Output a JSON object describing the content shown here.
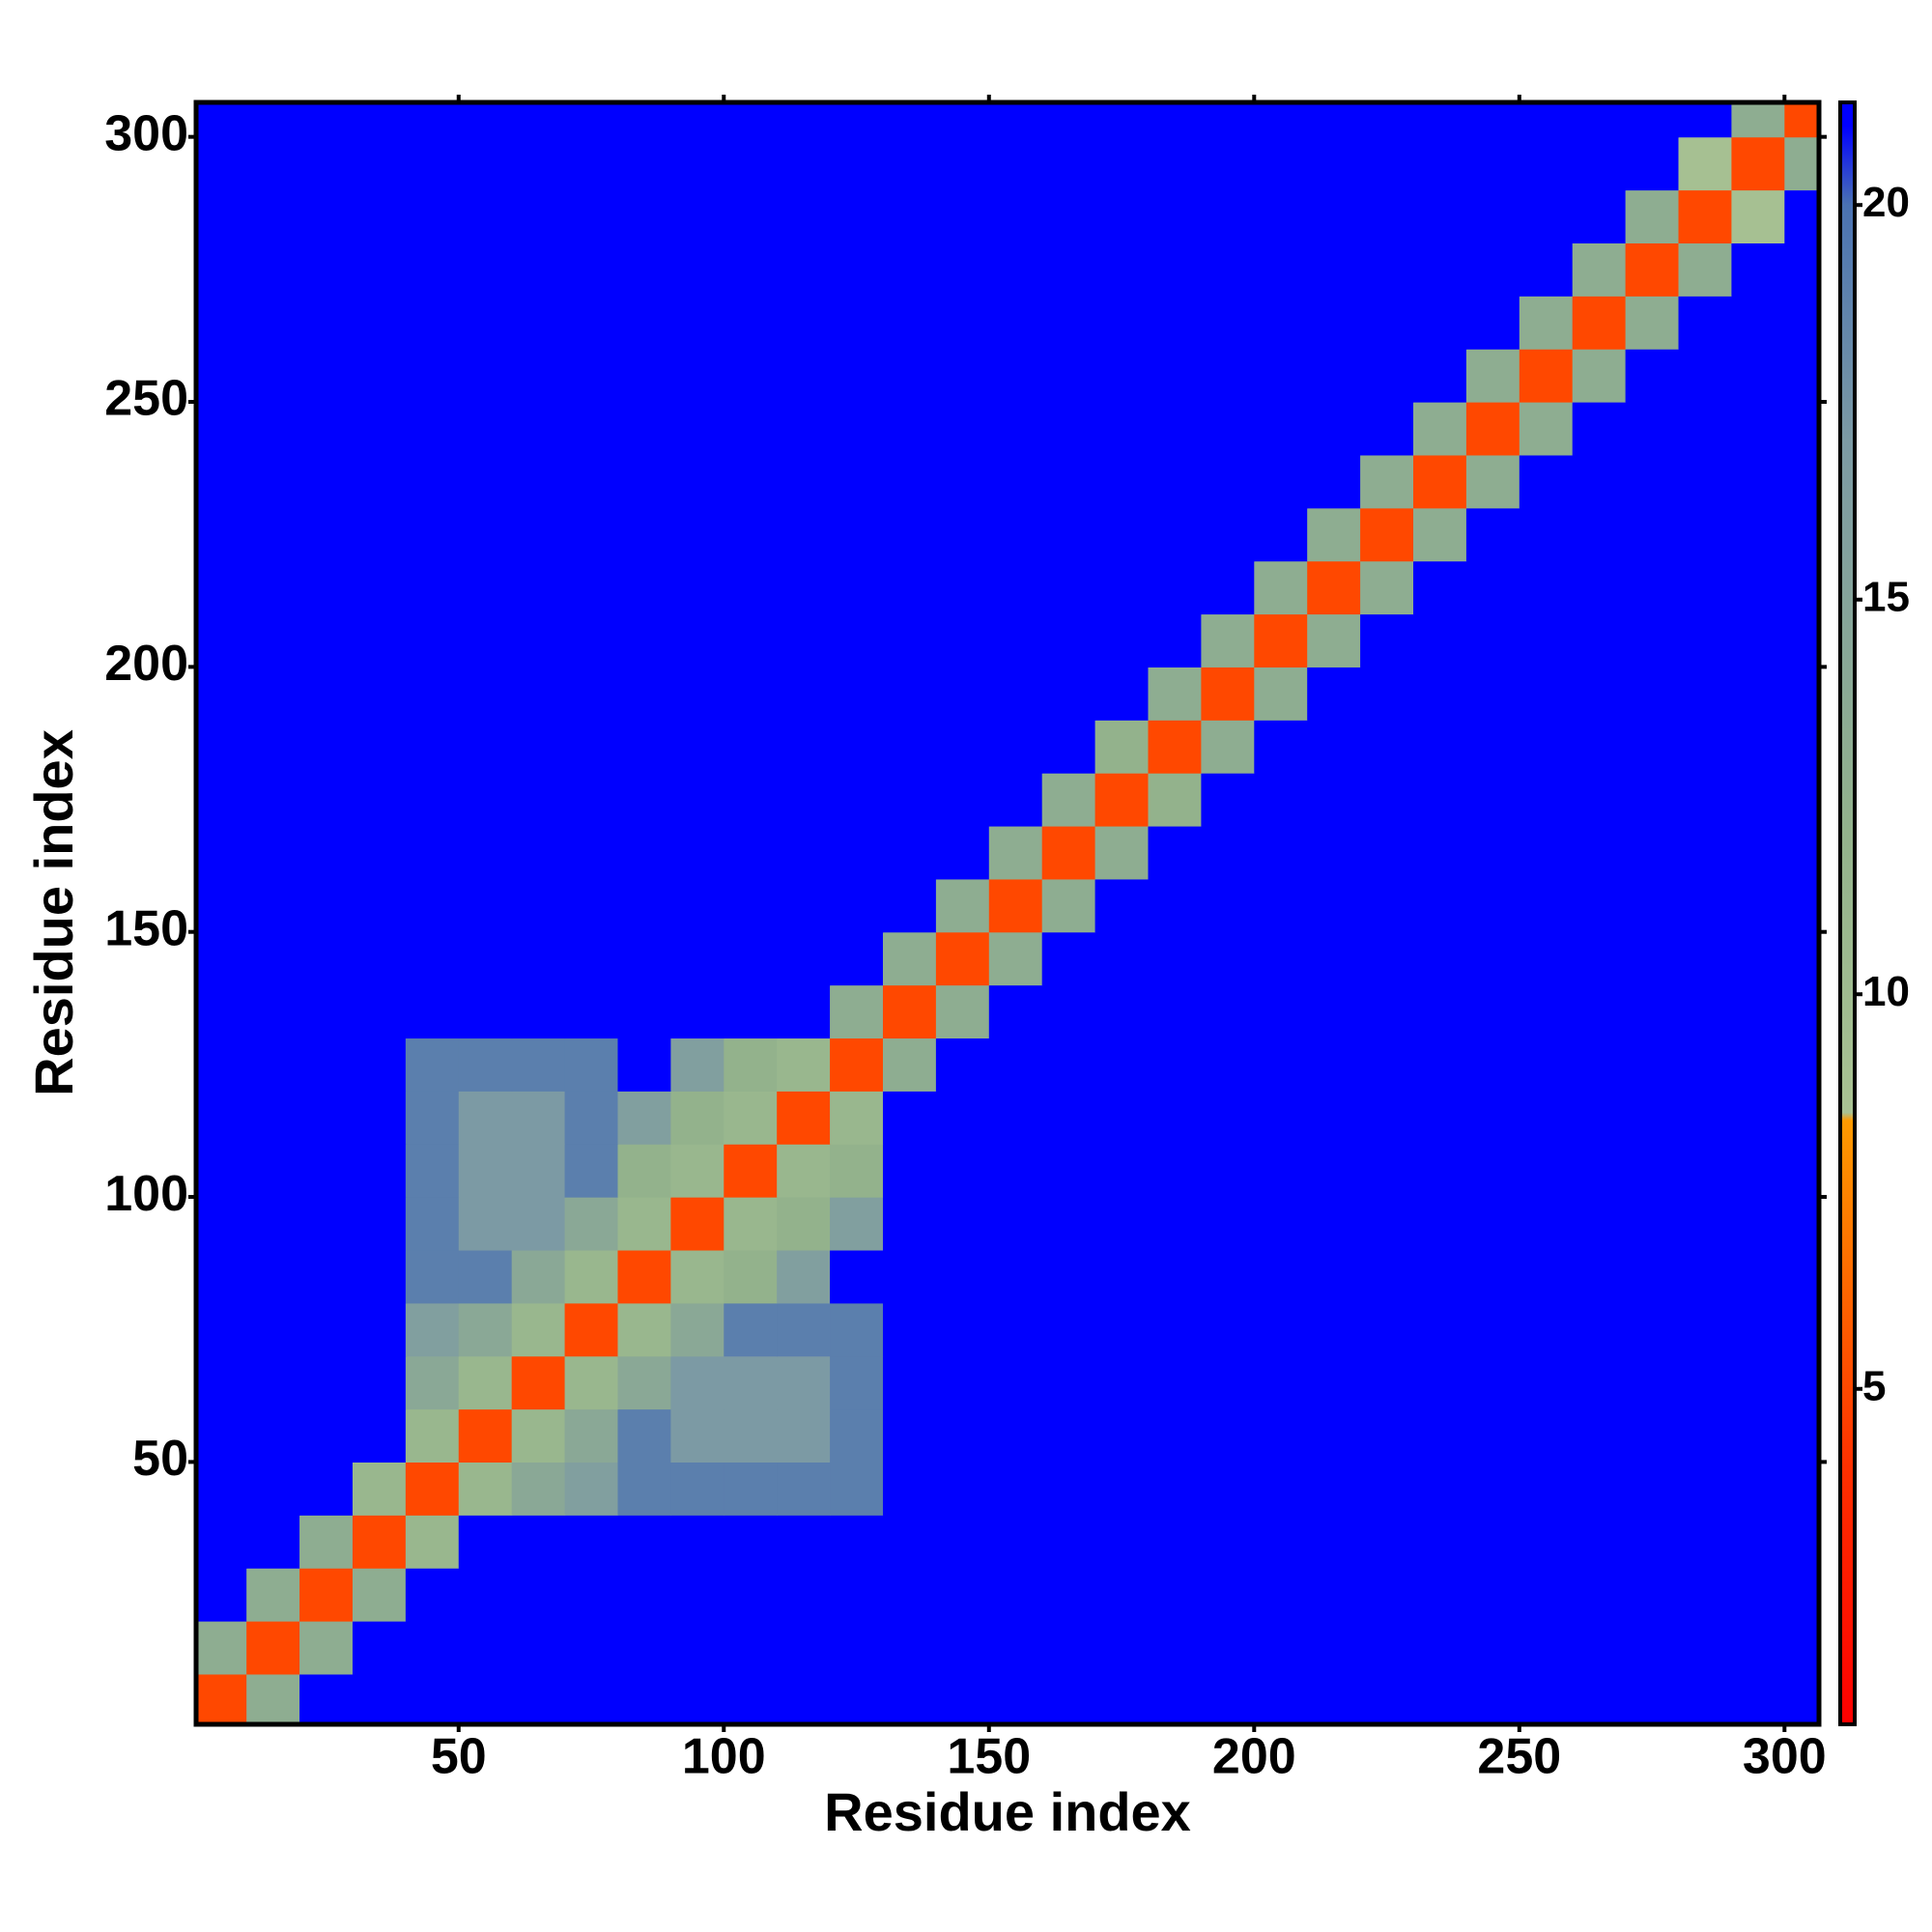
{
  "chart_data": {
    "type": "heatmap",
    "xlabel": "Residue index",
    "ylabel": "Residue index",
    "xbins": [
      0,
      10,
      20,
      30,
      40,
      50,
      60,
      70,
      80,
      90,
      100,
      110,
      120,
      130,
      140,
      150,
      160,
      170,
      180,
      190,
      200,
      210,
      220,
      230,
      240,
      250,
      260,
      270,
      280,
      290,
      300,
      310
    ],
    "ybins": [
      0,
      10,
      20,
      30,
      40,
      50,
      60,
      70,
      80,
      90,
      100,
      110,
      120,
      130,
      140,
      150,
      160,
      170,
      180,
      190,
      200,
      210,
      220,
      230,
      240,
      250,
      260,
      270,
      280,
      290,
      300,
      310
    ],
    "z": [
      [
        5,
        13,
        21,
        21,
        21,
        21,
        21,
        21,
        21,
        21,
        21,
        21,
        21,
        21,
        21,
        21,
        21,
        21,
        21,
        21,
        21,
        21,
        21,
        21,
        21,
        21,
        21,
        21,
        21,
        21,
        21
      ],
      [
        13,
        5,
        13,
        21,
        21,
        21,
        21,
        21,
        21,
        21,
        21,
        21,
        21,
        21,
        21,
        21,
        21,
        21,
        21,
        21,
        21,
        21,
        21,
        21,
        21,
        21,
        21,
        21,
        21,
        21,
        21
      ],
      [
        21,
        13,
        5,
        13,
        21,
        21,
        21,
        21,
        21,
        21,
        21,
        21,
        21,
        21,
        21,
        21,
        21,
        21,
        21,
        21,
        21,
        21,
        21,
        21,
        21,
        21,
        21,
        21,
        21,
        21,
        21
      ],
      [
        21,
        21,
        13,
        5,
        11,
        21,
        21,
        21,
        21,
        21,
        21,
        21,
        21,
        21,
        21,
        21,
        21,
        21,
        21,
        21,
        21,
        21,
        21,
        21,
        21,
        21,
        21,
        21,
        21,
        21,
        21
      ],
      [
        21,
        21,
        21,
        11,
        5,
        11,
        14,
        16,
        19,
        19,
        19,
        19,
        19,
        21,
        21,
        21,
        21,
        21,
        21,
        21,
        21,
        21,
        21,
        21,
        21,
        21,
        21,
        21,
        21,
        21,
        21
      ],
      [
        21,
        21,
        21,
        21,
        11,
        5,
        11,
        14,
        19,
        17,
        17,
        17,
        19,
        21,
        21,
        21,
        21,
        21,
        21,
        21,
        21,
        21,
        21,
        21,
        21,
        21,
        21,
        21,
        21,
        21,
        21
      ],
      [
        21,
        21,
        21,
        21,
        14,
        11,
        5,
        11,
        14,
        17,
        17,
        17,
        19,
        21,
        21,
        21,
        21,
        21,
        21,
        21,
        21,
        21,
        21,
        21,
        21,
        21,
        21,
        21,
        21,
        21,
        21
      ],
      [
        21,
        21,
        21,
        21,
        16,
        14,
        11,
        5,
        11,
        14,
        19,
        19,
        19,
        21,
        21,
        21,
        21,
        21,
        21,
        21,
        21,
        21,
        21,
        21,
        21,
        21,
        21,
        21,
        21,
        21,
        21
      ],
      [
        21,
        21,
        21,
        21,
        19,
        19,
        14,
        11,
        5,
        11,
        12,
        16,
        21,
        21,
        21,
        21,
        21,
        21,
        21,
        21,
        21,
        21,
        21,
        21,
        21,
        21,
        21,
        21,
        21,
        21,
        21
      ],
      [
        21,
        21,
        21,
        21,
        19,
        17,
        17,
        14,
        11,
        5,
        11,
        12,
        16,
        21,
        21,
        21,
        21,
        21,
        21,
        21,
        21,
        21,
        21,
        21,
        21,
        21,
        21,
        21,
        21,
        21,
        21
      ],
      [
        21,
        21,
        21,
        21,
        19,
        17,
        17,
        19,
        12,
        11,
        5,
        11,
        12,
        21,
        21,
        21,
        21,
        21,
        21,
        21,
        21,
        21,
        21,
        21,
        21,
        21,
        21,
        21,
        21,
        21,
        21
      ],
      [
        21,
        21,
        21,
        21,
        19,
        17,
        17,
        19,
        16,
        12,
        11,
        5,
        11,
        21,
        21,
        21,
        21,
        21,
        21,
        21,
        21,
        21,
        21,
        21,
        21,
        21,
        21,
        21,
        21,
        21,
        21
      ],
      [
        21,
        21,
        21,
        21,
        19,
        19,
        19,
        19,
        21,
        16,
        12,
        11,
        5,
        13,
        21,
        21,
        21,
        21,
        21,
        21,
        21,
        21,
        21,
        21,
        21,
        21,
        21,
        21,
        21,
        21,
        21
      ],
      [
        21,
        21,
        21,
        21,
        21,
        21,
        21,
        21,
        21,
        21,
        21,
        21,
        13,
        5,
        13,
        21,
        21,
        21,
        21,
        21,
        21,
        21,
        21,
        21,
        21,
        21,
        21,
        21,
        21,
        21,
        21
      ],
      [
        21,
        21,
        21,
        21,
        21,
        21,
        21,
        21,
        21,
        21,
        21,
        21,
        21,
        13,
        5,
        13,
        21,
        21,
        21,
        21,
        21,
        21,
        21,
        21,
        21,
        21,
        21,
        21,
        21,
        21,
        21
      ],
      [
        21,
        21,
        21,
        21,
        21,
        21,
        21,
        21,
        21,
        21,
        21,
        21,
        21,
        21,
        13,
        5,
        13,
        21,
        21,
        21,
        21,
        21,
        21,
        21,
        21,
        21,
        21,
        21,
        21,
        21,
        21
      ],
      [
        21,
        21,
        21,
        21,
        21,
        21,
        21,
        21,
        21,
        21,
        21,
        21,
        21,
        21,
        21,
        13,
        5,
        13,
        21,
        21,
        21,
        21,
        21,
        21,
        21,
        21,
        21,
        21,
        21,
        21,
        21
      ],
      [
        21,
        21,
        21,
        21,
        21,
        21,
        21,
        21,
        21,
        21,
        21,
        21,
        21,
        21,
        21,
        21,
        13,
        5,
        12,
        21,
        21,
        21,
        21,
        21,
        21,
        21,
        21,
        21,
        21,
        21,
        21
      ],
      [
        21,
        21,
        21,
        21,
        21,
        21,
        21,
        21,
        21,
        21,
        21,
        21,
        21,
        21,
        21,
        21,
        21,
        12,
        5,
        13,
        21,
        21,
        21,
        21,
        21,
        21,
        21,
        21,
        21,
        21,
        21
      ],
      [
        21,
        21,
        21,
        21,
        21,
        21,
        21,
        21,
        21,
        21,
        21,
        21,
        21,
        21,
        21,
        21,
        21,
        21,
        13,
        5,
        13,
        21,
        21,
        21,
        21,
        21,
        21,
        21,
        21,
        21,
        21
      ],
      [
        21,
        21,
        21,
        21,
        21,
        21,
        21,
        21,
        21,
        21,
        21,
        21,
        21,
        21,
        21,
        21,
        21,
        21,
        21,
        13,
        5,
        13,
        21,
        21,
        21,
        21,
        21,
        21,
        21,
        21,
        21
      ],
      [
        21,
        21,
        21,
        21,
        21,
        21,
        21,
        21,
        21,
        21,
        21,
        21,
        21,
        21,
        21,
        21,
        21,
        21,
        21,
        21,
        13,
        5,
        13,
        21,
        21,
        21,
        21,
        21,
        21,
        21,
        21
      ],
      [
        21,
        21,
        21,
        21,
        21,
        21,
        21,
        21,
        21,
        21,
        21,
        21,
        21,
        21,
        21,
        21,
        21,
        21,
        21,
        21,
        21,
        13,
        5,
        13,
        21,
        21,
        21,
        21,
        21,
        21,
        21
      ],
      [
        21,
        21,
        21,
        21,
        21,
        21,
        21,
        21,
        21,
        21,
        21,
        21,
        21,
        21,
        21,
        21,
        21,
        21,
        21,
        21,
        21,
        21,
        13,
        5,
        13,
        21,
        21,
        21,
        21,
        21,
        21
      ],
      [
        21,
        21,
        21,
        21,
        21,
        21,
        21,
        21,
        21,
        21,
        21,
        21,
        21,
        21,
        21,
        21,
        21,
        21,
        21,
        21,
        21,
        21,
        21,
        13,
        5,
        13,
        21,
        21,
        21,
        21,
        21
      ],
      [
        21,
        21,
        21,
        21,
        21,
        21,
        21,
        21,
        21,
        21,
        21,
        21,
        21,
        21,
        21,
        21,
        21,
        21,
        21,
        21,
        21,
        21,
        21,
        21,
        13,
        5,
        13,
        21,
        21,
        21,
        21
      ],
      [
        21,
        21,
        21,
        21,
        21,
        21,
        21,
        21,
        21,
        21,
        21,
        21,
        21,
        21,
        21,
        21,
        21,
        21,
        21,
        21,
        21,
        21,
        21,
        21,
        21,
        13,
        5,
        13,
        21,
        21,
        21
      ],
      [
        21,
        21,
        21,
        21,
        21,
        21,
        21,
        21,
        21,
        21,
        21,
        21,
        21,
        21,
        21,
        21,
        21,
        21,
        21,
        21,
        21,
        21,
        21,
        21,
        21,
        21,
        13,
        5,
        13,
        21,
        21
      ],
      [
        21,
        21,
        21,
        21,
        21,
        21,
        21,
        21,
        21,
        21,
        21,
        21,
        21,
        21,
        21,
        21,
        21,
        21,
        21,
        21,
        21,
        21,
        21,
        21,
        21,
        21,
        21,
        13,
        5,
        9,
        21
      ],
      [
        21,
        21,
        21,
        21,
        21,
        21,
        21,
        21,
        21,
        21,
        21,
        21,
        21,
        21,
        21,
        21,
        21,
        21,
        21,
        21,
        21,
        21,
        21,
        21,
        21,
        21,
        21,
        21,
        9,
        5,
        13
      ],
      [
        21,
        21,
        21,
        21,
        21,
        21,
        21,
        21,
        21,
        21,
        21,
        21,
        21,
        21,
        21,
        21,
        21,
        21,
        21,
        21,
        21,
        21,
        21,
        21,
        21,
        21,
        21,
        21,
        21,
        13,
        5
      ]
    ],
    "xlim": [
      0.5,
      306.5
    ],
    "ylim": [
      0.5,
      306.5
    ],
    "xticks": [
      50,
      100,
      150,
      200,
      250,
      300
    ],
    "yticks": [
      50,
      100,
      150,
      200,
      250,
      300
    ],
    "clim": [
      0.75,
      21.3
    ],
    "cticks": [
      5,
      10,
      15,
      20
    ],
    "colorscale": [
      [
        0.75,
        "#ff0000"
      ],
      [
        4,
        "#ff3000"
      ],
      [
        8.4,
        "#ff9a00"
      ],
      [
        8.5,
        "#a9c293"
      ],
      [
        12,
        "#93b28c"
      ],
      [
        17,
        "#7c9aa4"
      ],
      [
        20,
        "#4a72b2"
      ],
      [
        21,
        "#0000ff"
      ]
    ]
  }
}
